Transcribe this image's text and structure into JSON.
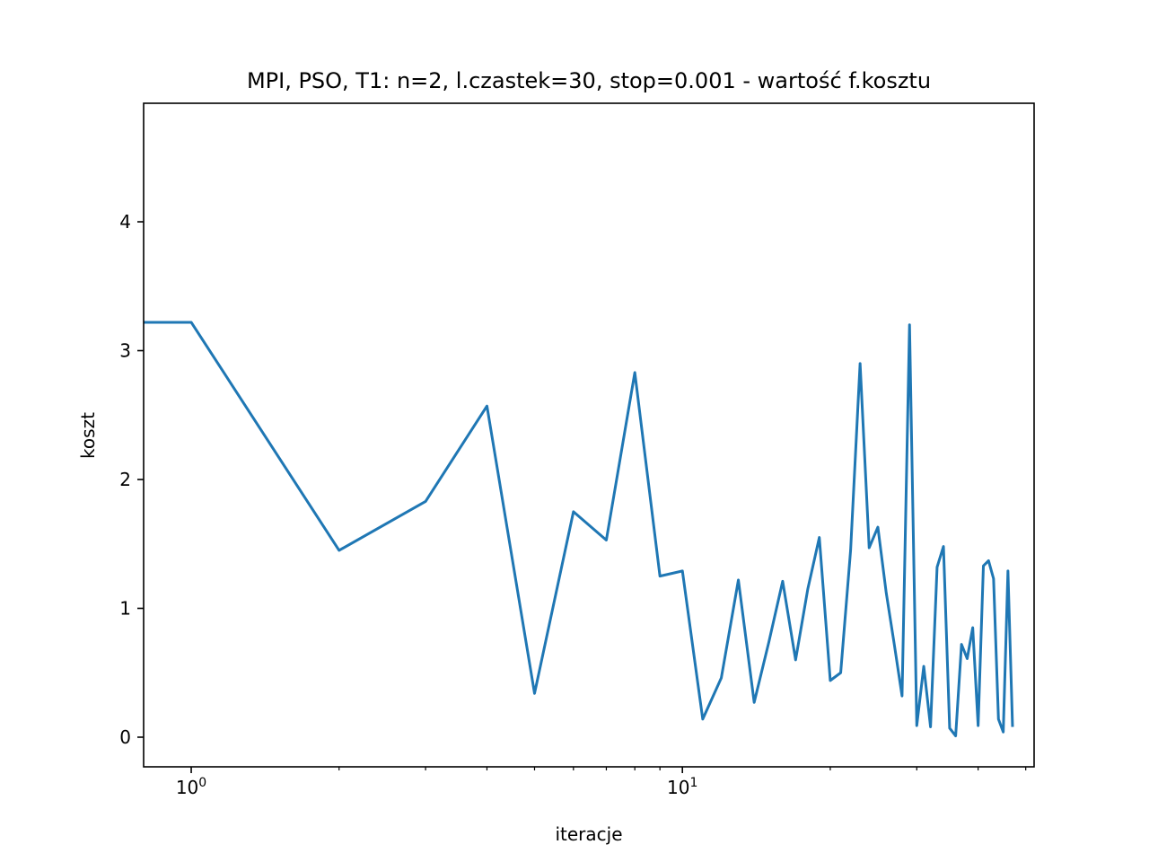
{
  "chart_data": {
    "type": "line",
    "title": "MPI, PSO, T1: n=2, l.czastek=30, stop=0.001 - wartość f.kosztu",
    "xlabel": "iteracje",
    "ylabel": "koszt",
    "xscale": "log",
    "xlim": [
      0.8,
      52
    ],
    "ylim": [
      -0.23,
      4.92
    ],
    "xticks_major": [
      {
        "value": 1,
        "base": "10",
        "exp": "0"
      },
      {
        "value": 10,
        "base": "10",
        "exp": "1"
      }
    ],
    "xticks_minor": [
      2,
      3,
      4,
      5,
      6,
      7,
      8,
      9,
      20,
      30,
      40,
      50
    ],
    "yticks": [
      {
        "value": 0,
        "label": "0"
      },
      {
        "value": 1,
        "label": "1"
      },
      {
        "value": 2,
        "label": "2"
      },
      {
        "value": 3,
        "label": "3"
      },
      {
        "value": 4,
        "label": "4"
      }
    ],
    "grid": false,
    "series": [
      {
        "color": "#1f77b4",
        "x": [
          0,
          1,
          2,
          3,
          4,
          5,
          6,
          7,
          8,
          9,
          10,
          11,
          12,
          13,
          14,
          15,
          16,
          17,
          18,
          19,
          20,
          21,
          22,
          23,
          24,
          25,
          26,
          27,
          28,
          29,
          30,
          31,
          32,
          33,
          34,
          35,
          36,
          37,
          38,
          39,
          40,
          41,
          42,
          43,
          44,
          45,
          46,
          47
        ],
        "y": [
          3.22,
          3.22,
          1.45,
          1.83,
          2.57,
          0.34,
          1.75,
          1.53,
          2.83,
          1.25,
          1.29,
          0.14,
          0.46,
          1.22,
          0.27,
          0.74,
          1.21,
          0.6,
          1.15,
          1.55,
          0.44,
          0.5,
          1.45,
          2.9,
          1.47,
          1.63,
          1.12,
          0.72,
          0.32,
          3.2,
          0.09,
          0.55,
          0.08,
          1.32,
          1.48,
          0.07,
          0.01,
          0.72,
          0.61,
          0.85,
          0.09,
          1.33,
          1.37,
          1.23,
          0.14,
          0.04,
          1.29,
          0.08
        ]
      }
    ]
  }
}
